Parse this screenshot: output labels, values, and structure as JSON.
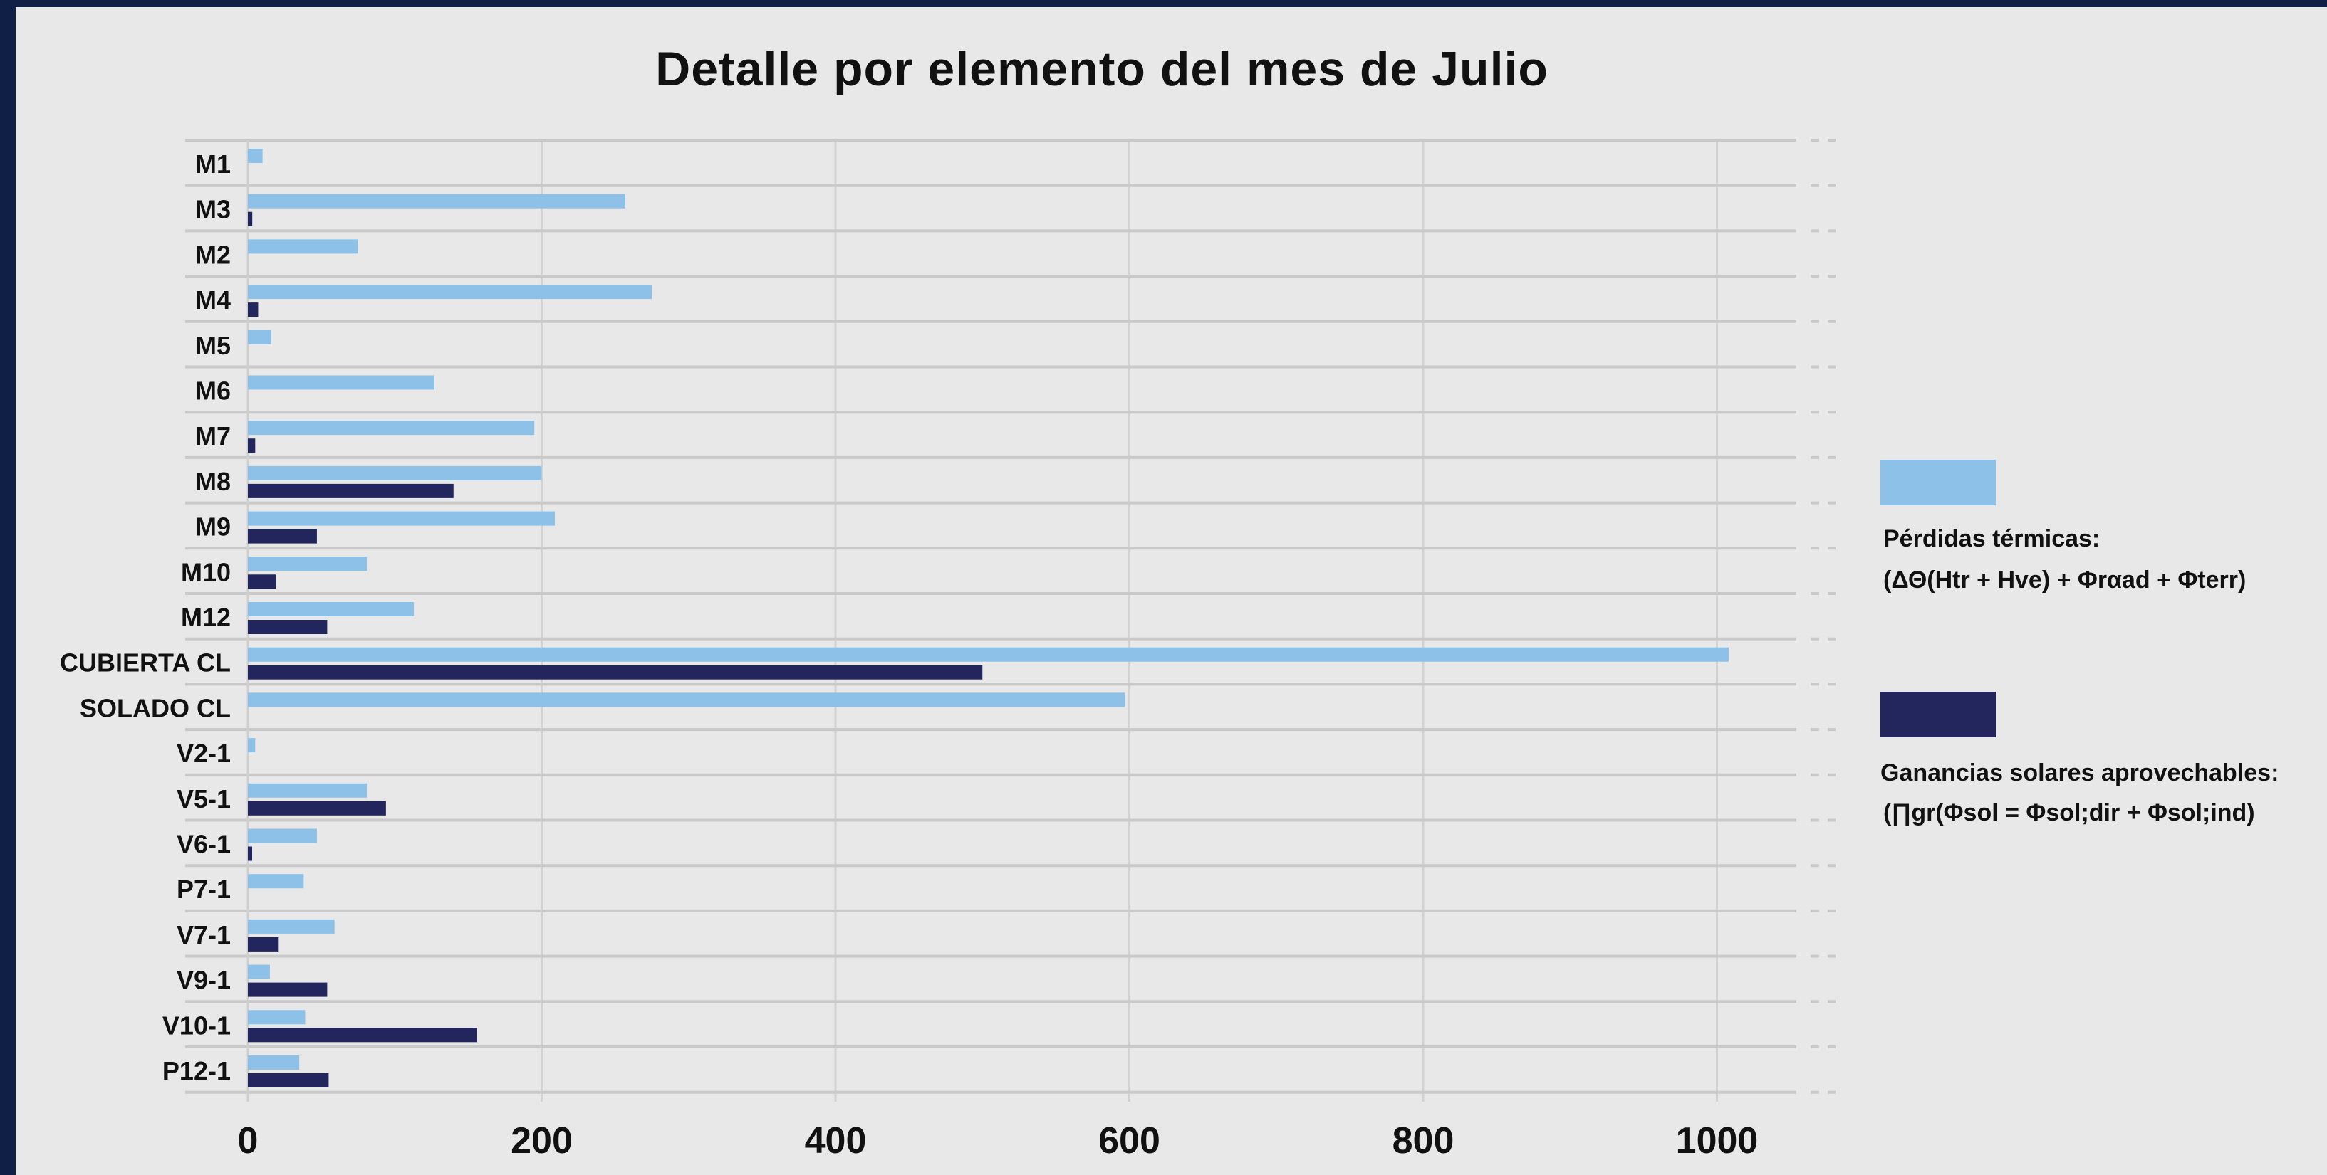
{
  "chart_data": {
    "type": "bar",
    "orientation": "horizontal",
    "title": "Detalle por elemento del mes de Julio",
    "categories": [
      "M1",
      "M3",
      "M2",
      "M4",
      "M5",
      "M6",
      "M7",
      "M8",
      "M9",
      "M10",
      "M12",
      "CUBIERTA CL",
      "SOLADO CL",
      "V2-1",
      "V5-1",
      "V6-1",
      "P7-1",
      "V7-1",
      "V9-1",
      "V10-1",
      "P12-1"
    ],
    "series": [
      {
        "name": "Pérdidas térmicas:",
        "name_line2": "(ΔΘ(Htr + Hve) + Φrαad + Φterr)",
        "color": "#8dc1e8",
        "values": [
          10,
          257,
          75,
          275,
          16,
          127,
          195,
          200,
          209,
          81,
          113,
          1008,
          597,
          5,
          81,
          47,
          38,
          59,
          15,
          39,
          35
        ]
      },
      {
        "name": "Ganancias solares aprovechables:",
        "name_line2": "(∏gr(Φsol = Φsol;dir + Φsol;ind)",
        "color": "#22265c",
        "values": [
          0,
          3,
          0,
          7,
          0,
          0,
          5,
          140,
          47,
          19,
          54,
          500,
          0,
          0,
          94,
          2,
          0,
          21,
          54,
          156,
          55
        ]
      }
    ],
    "xticks": [
      0,
      200,
      400,
      600,
      800,
      1000
    ],
    "xlim": [
      0,
      1080
    ],
    "grid": true,
    "legend_position": "right"
  }
}
